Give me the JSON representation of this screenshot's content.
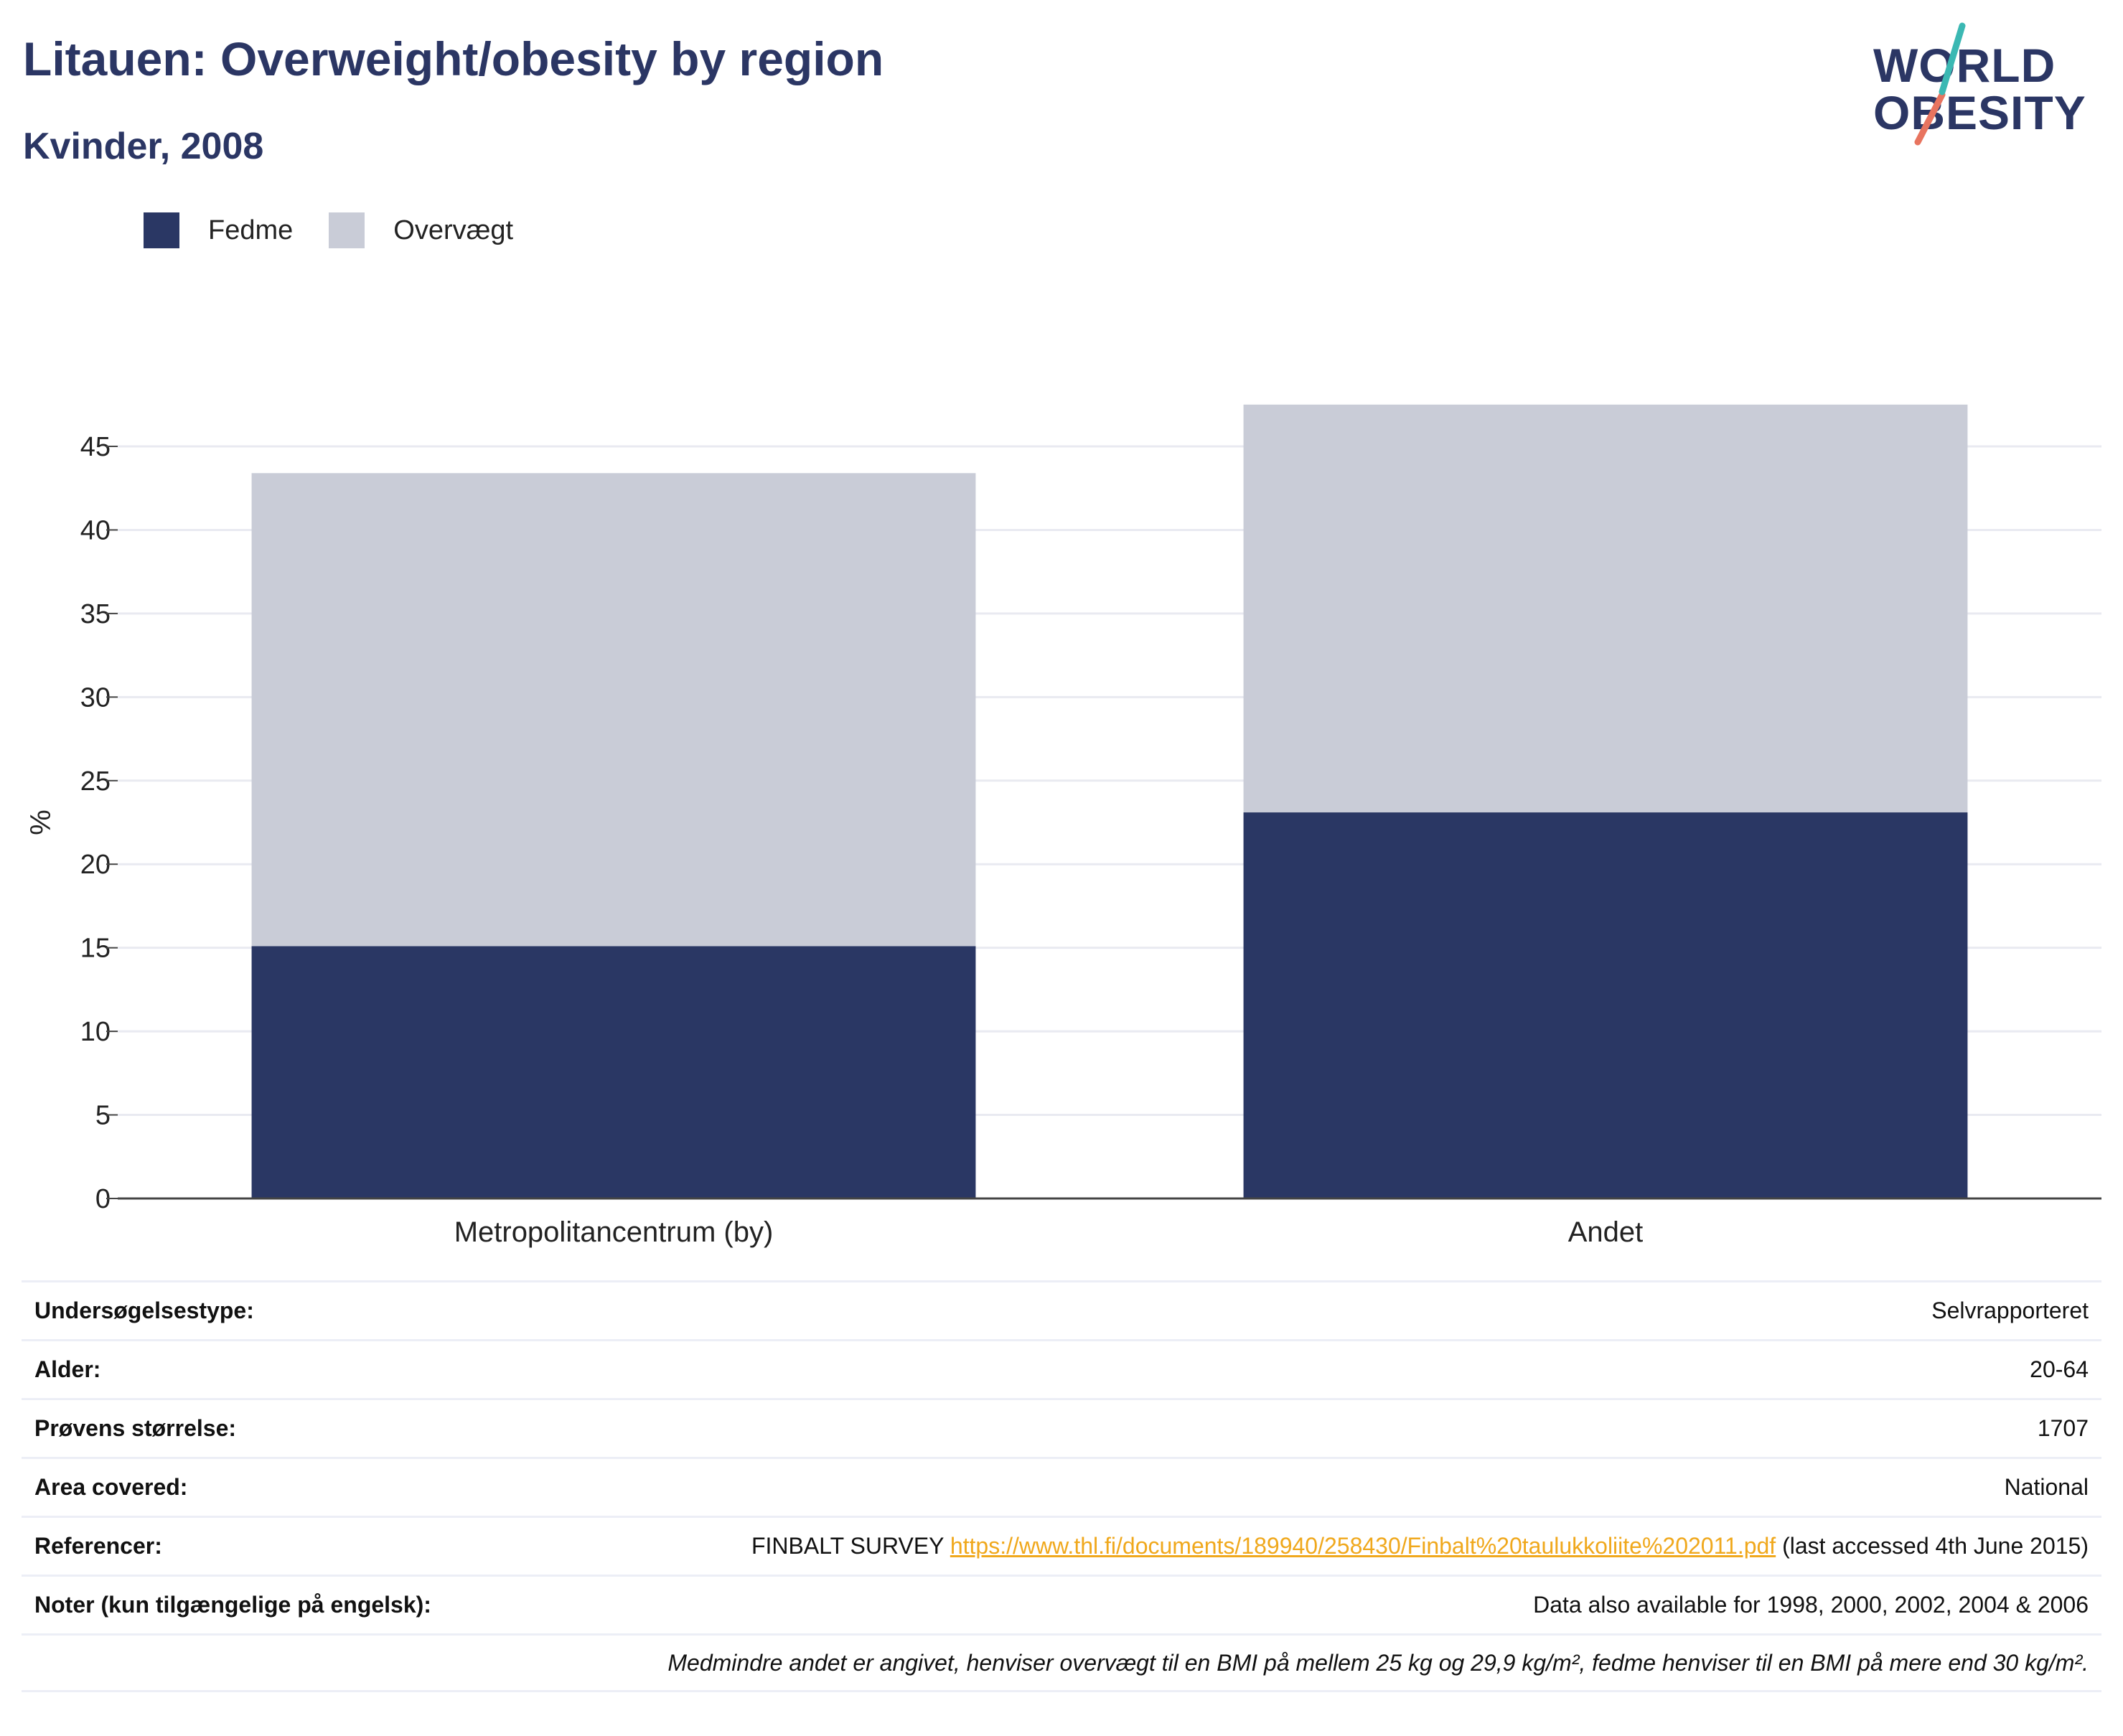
{
  "header": {
    "title": "Litauen: Overweight/obesity by region",
    "subtitle": "Kvinder, 2008"
  },
  "logo": {
    "line1": "WORLD",
    "line2": "OBESITY"
  },
  "colors": {
    "fedme": "#2a3764",
    "overvaegt": "#c9ccd7",
    "title": "#2b3664",
    "link": "#f0a81c"
  },
  "legend": [
    {
      "label": "Fedme",
      "color": "#2a3764"
    },
    {
      "label": "Overvægt",
      "color": "#c9ccd7"
    }
  ],
  "chart_data": {
    "type": "bar",
    "stacked": true,
    "categories": [
      "Metropolitancentrum (by)",
      "Andet"
    ],
    "series": [
      {
        "name": "Fedme",
        "values": [
          15.1,
          23.1
        ]
      },
      {
        "name": "Overvægt",
        "values": [
          28.3,
          24.4
        ]
      }
    ],
    "ylabel": "%",
    "ylim": [
      0,
      47.5
    ],
    "yticks": [
      0,
      5,
      10,
      15,
      20,
      25,
      30,
      35,
      40,
      45
    ],
    "grid": true,
    "legend_position": "top-left"
  },
  "info": {
    "rows": [
      {
        "label": "Undersøgelsestype:",
        "value": "Selvrapporteret"
      },
      {
        "label": "Alder:",
        "value": "20-64"
      },
      {
        "label": "Prøvens størrelse:",
        "value": "1707"
      },
      {
        "label": "Area covered:",
        "value": "National"
      }
    ],
    "references": {
      "label": "Referencer:",
      "prefix": "FINBALT SURVEY ",
      "link": "https://www.thl.fi/documents/189940/258430/Finbalt%20taulukkoliite%202011.pdf",
      "suffix": " (last accessed 4th June 2015)"
    },
    "notes": {
      "label": "Noter (kun tilgængelige på engelsk):",
      "value": "Data also available for 1998, 2000, 2002, 2004 & 2006"
    },
    "footnote": "Medmindre andet er angivet, henviser overvægt til en BMI på mellem 25 kg og 29,9 kg/m², fedme henviser til en BMI på mere end 30 kg/m²."
  }
}
